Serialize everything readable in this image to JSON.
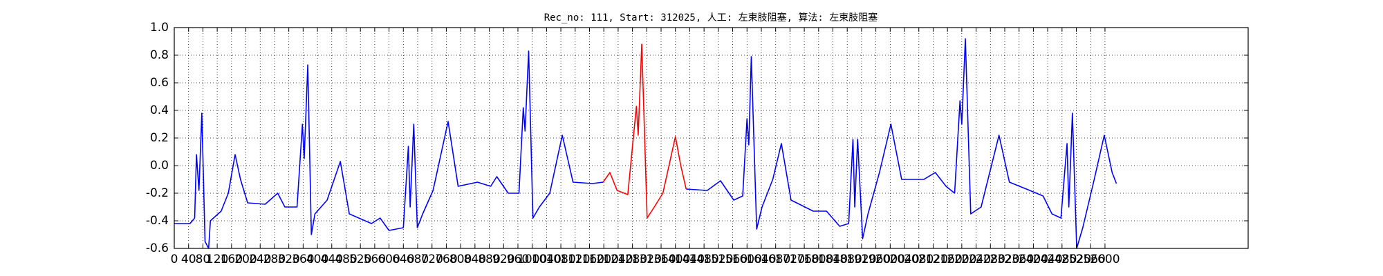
{
  "chart_data": {
    "type": "line",
    "title": "Rec_no: 111, Start: 312025, 人工: 左束肢阻塞, 算法: 左束肢阻塞",
    "series": [
      {
        "color": "#0000ff",
        "x": [
          0,
          44,
          57,
          62,
          69,
          77,
          86,
          96,
          101,
          131,
          151,
          170,
          185,
          205,
          254,
          289,
          309,
          343,
          358,
          363,
          373,
          383,
          393,
          427,
          464,
          489,
          551,
          575,
          600,
          640,
          654,
          659,
          669,
          679,
          694,
          723,
          765,
          793,
          847,
          884,
          901,
          933,
          963,
          975,
          980,
          990,
          1002,
          1020,
          1049,
          1084,
          1114,
          1168,
          1198,
          1300,
          1430,
          1489,
          1526,
          1563,
          1588,
          1600,
          1605,
          1612,
          1627,
          1642,
          1672,
          1696,
          1723,
          1785,
          1822,
          1859,
          1884,
          1896,
          1901,
          1909,
          1923,
          1938,
          1970,
          2002,
          2032,
          2094,
          2126,
          2156,
          2180,
          2195,
          2200,
          2210,
          2225,
          2254,
          2304,
          2333,
          2390,
          2427,
          2452,
          2477,
          2494,
          2499,
          2509,
          2521,
          2538,
          2570,
          2598,
          2620,
          2632
        ],
        "values": [
          -0.42,
          -0.42,
          -0.38,
          0.08,
          -0.18,
          0.38,
          -0.55,
          -0.6,
          -0.4,
          -0.33,
          -0.2,
          0.08,
          -0.1,
          -0.27,
          -0.28,
          -0.2,
          -0.3,
          -0.3,
          0.3,
          0.05,
          0.73,
          -0.5,
          -0.35,
          -0.25,
          0.03,
          -0.35,
          -0.42,
          -0.38,
          -0.47,
          -0.45,
          0.14,
          -0.3,
          0.3,
          -0.45,
          -0.35,
          -0.18,
          0.32,
          -0.15,
          -0.12,
          -0.15,
          -0.08,
          -0.2,
          -0.2,
          0.42,
          0.25,
          0.83,
          -0.38,
          -0.3,
          -0.2,
          0.22,
          -0.12,
          -0.13,
          -0.12,
          null,
          -0.17,
          -0.18,
          -0.11,
          -0.25,
          -0.22,
          0.34,
          0.15,
          0.79,
          -0.46,
          -0.3,
          -0.1,
          0.16,
          -0.25,
          -0.33,
          -0.33,
          -0.44,
          -0.42,
          0.19,
          -0.3,
          0.19,
          -0.53,
          -0.35,
          -0.05,
          0.3,
          -0.1,
          -0.1,
          -0.05,
          -0.15,
          -0.2,
          0.47,
          0.3,
          0.92,
          -0.35,
          -0.3,
          0.22,
          -0.12,
          -0.18,
          -0.22,
          -0.35,
          -0.38,
          0.16,
          -0.3,
          0.38,
          -0.6,
          -0.45,
          -0.1,
          0.22,
          -0.05,
          -0.13
        ]
      },
      {
        "color": "#ff0000",
        "x": [
          1198,
          1217,
          1237,
          1267,
          1291,
          1296,
          1306,
          1321,
          1341,
          1365,
          1400,
          1415,
          1430
        ],
        "values": [
          -0.12,
          -0.05,
          -0.18,
          -0.21,
          0.43,
          0.22,
          0.88,
          -0.38,
          -0.3,
          -0.2,
          0.21,
          0.0,
          -0.17
        ]
      }
    ],
    "xlim": [
      0,
      3000
    ],
    "xticks": [
      0,
      40,
      80,
      120,
      160,
      200,
      240,
      280,
      320,
      360,
      400,
      440,
      480,
      520,
      560,
      600,
      640,
      680,
      720,
      760,
      800,
      840,
      880,
      920,
      960,
      1000,
      1040,
      1080,
      1120,
      1160,
      1200,
      1240,
      1280,
      1320,
      1360,
      1400,
      1440,
      1480,
      1520,
      1560,
      1600,
      1640,
      1680,
      1720,
      1760,
      1800,
      1840,
      1880,
      1920,
      1960,
      2000,
      2040,
      2080,
      2120,
      2160,
      2200,
      2240,
      2280,
      2320,
      2360,
      2400,
      2440,
      2480,
      2520,
      2560,
      2600
    ],
    "ylim": [
      -0.6,
      1.0
    ],
    "yticks": [
      -0.6,
      -0.4,
      -0.2,
      {
        "value": 0.0,
        "label": "0.0"
      },
      0.2,
      0.4,
      0.6,
      0.8,
      {
        "value": 1.0,
        "label": "1.0"
      }
    ],
    "grid": true
  }
}
